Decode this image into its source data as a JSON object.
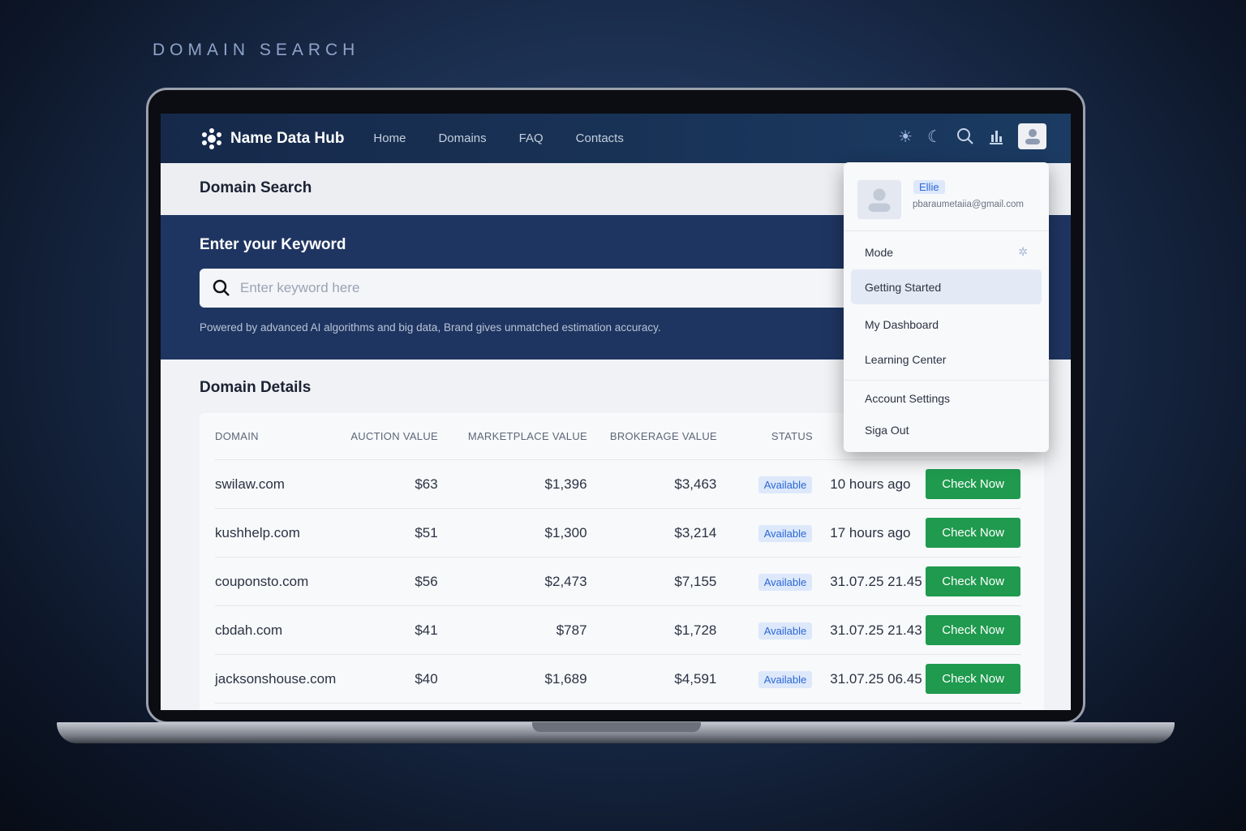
{
  "caption": "DOMAIN SEARCH",
  "nav": {
    "brand": "Name Data Hub",
    "links": [
      "Home",
      "Domains",
      "FAQ",
      "Contacts"
    ]
  },
  "page_title": "Domain Search",
  "hero": {
    "heading": "Enter your Keyword",
    "placeholder": "Enter keyword here",
    "tagline": "Powered by advanced AI algorithms and big data, Brand gives unmatched estimation accuracy."
  },
  "details": {
    "heading": "Domain Details",
    "columns": [
      "DOMAIN",
      "AUCTION VALUE",
      "MARKETPLACE VALUE",
      "BROKERAGE VALUE",
      "STATUS"
    ],
    "rows": [
      {
        "domain": "swilaw.com",
        "auction": "$63",
        "marketplace": "$1,396",
        "brokerage": "$3,463",
        "status": "Available",
        "time": "10 hours ago",
        "action": "Check Now"
      },
      {
        "domain": "kushhelp.com",
        "auction": "$51",
        "marketplace": "$1,300",
        "brokerage": "$3,214",
        "status": "Available",
        "time": "17 hours ago",
        "action": "Check Now"
      },
      {
        "domain": "couponsto.com",
        "auction": "$56",
        "marketplace": "$2,473",
        "brokerage": "$7,155",
        "status": "Available",
        "time": "31.07.25 21.45",
        "action": "Check Now"
      },
      {
        "domain": "cbdah.com",
        "auction": "$41",
        "marketplace": "$787",
        "brokerage": "$1,728",
        "status": "Available",
        "time": "31.07.25 21.43",
        "action": "Check Now"
      },
      {
        "domain": "jacksonshouse.com",
        "auction": "$40",
        "marketplace": "$1,689",
        "brokerage": "$4,591",
        "status": "Available",
        "time": "31.07.25 06.45",
        "action": "Check Now"
      }
    ]
  },
  "menu": {
    "name": "Ellie",
    "email": "pbaraumetaiia@gmail.com",
    "items": [
      "Mode",
      "Getting Started",
      "My Dashboard",
      "Learning Center",
      "Account Settings",
      "Siga Out"
    ]
  },
  "colors": {
    "nav": "#16294a",
    "hero": "#1f3561",
    "button": "#1f9a4e",
    "badge": "#2b68d6"
  }
}
